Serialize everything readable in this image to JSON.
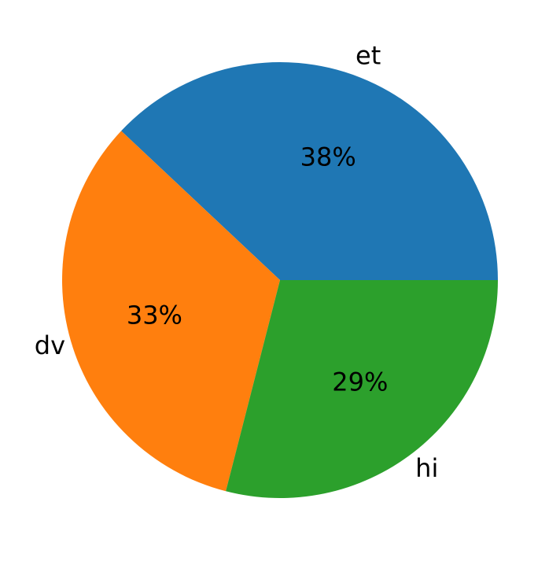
{
  "chart_data": {
    "type": "pie",
    "categories": [
      "et",
      "dv",
      "hi"
    ],
    "values": [
      38,
      33,
      29
    ],
    "value_labels": [
      "38%",
      "33%",
      "29%"
    ],
    "colors": [
      "#1f77b4",
      "#ff7f0e",
      "#2ca02c"
    ]
  }
}
